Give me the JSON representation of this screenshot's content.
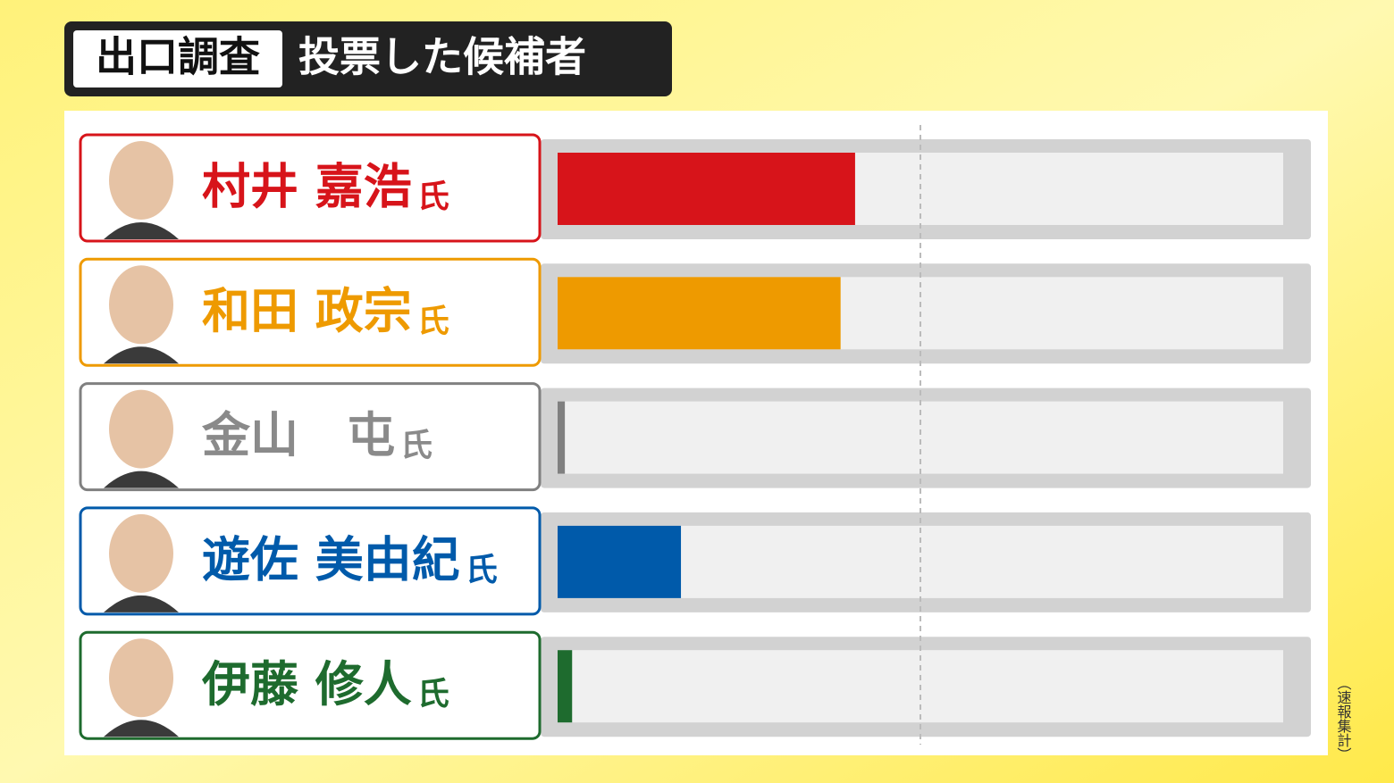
{
  "chart_data": {
    "type": "bar",
    "orientation": "horizontal",
    "title_tag": "出口調査",
    "title": "投票した候補者",
    "note": "（速報集計）",
    "honorific": "氏",
    "categories": [
      "村井 嘉浩",
      "和田 政宗",
      "金山　屯",
      "遊佐 美由紀",
      "伊藤 修人"
    ],
    "values": [
      41,
      39,
      1,
      17,
      2
    ],
    "colors": [
      "#d7141a",
      "#ee9a00",
      "#808080",
      "#005aaa",
      "#1e6b2e"
    ],
    "label_colors": [
      "#d7141a",
      "#ee9a00",
      "#8a8a8a",
      "#005aaa",
      "#1e6b2e"
    ],
    "xlim": [
      0,
      100
    ],
    "reference_line": 50
  }
}
